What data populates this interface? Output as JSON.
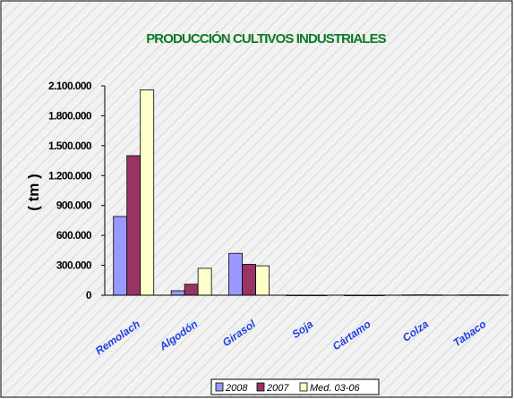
{
  "chart_data": {
    "type": "bar",
    "title": "PRODUCCIÓN CULTIVOS INDUSTRIALES",
    "ylabel": "( tm )",
    "xlabel": "",
    "categories": [
      "Remolacha",
      "Algodón",
      "Girasol",
      "Soja",
      "Cártamo",
      "Colza",
      "Tabaco"
    ],
    "tick_labels": [
      "Remolach",
      "Algodón",
      "Girasol",
      "Soja",
      "Cártamo",
      "Colza",
      "Tabaco"
    ],
    "y_ticks": [
      "0",
      "300.000",
      "600.000",
      "900.000",
      "1.200.000",
      "1.500.000",
      "1.800.000",
      "2.100.000"
    ],
    "ylim": [
      0,
      2100000
    ],
    "y_tick_step": 300000,
    "series": [
      {
        "name": "2008",
        "color": "#9999ff",
        "values": [
          790000,
          45000,
          420000,
          0,
          0,
          3000,
          3000
        ]
      },
      {
        "name": "2007",
        "color": "#993366",
        "values": [
          1400000,
          110000,
          310000,
          0,
          0,
          4000,
          3000
        ]
      },
      {
        "name": "Med. 03-06",
        "color": "#ffffcc",
        "values": [
          2060000,
          270000,
          295000,
          0,
          0,
          3000,
          3000
        ]
      }
    ],
    "legend_position": "bottom-right",
    "grid": false,
    "background": "hatched-light-gray",
    "colors": {
      "title": "#0a7a24",
      "category_labels": "#1f3fe0",
      "axis": "#000000"
    }
  }
}
